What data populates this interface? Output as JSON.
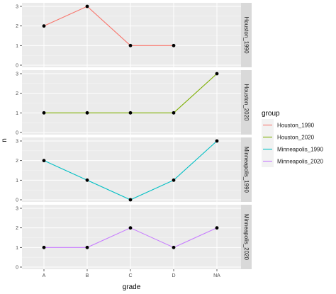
{
  "chart_data": {
    "type": "line",
    "facet": "rows",
    "xlabel": "grade",
    "ylabel": "n",
    "categories": [
      "A",
      "B",
      "C",
      "D",
      "NA"
    ],
    "ylim": [
      0,
      3
    ],
    "yticks": [
      0,
      1,
      2,
      3
    ],
    "grid": true,
    "legend": {
      "title": "group",
      "placement": "right"
    },
    "series": [
      {
        "name": "Houston_1990",
        "color": "#F8766D",
        "x": [
          "A",
          "B",
          "C",
          "D"
        ],
        "values": [
          2,
          3,
          1,
          1
        ]
      },
      {
        "name": "Houston_2020",
        "color": "#7CAE00",
        "x": [
          "A",
          "B",
          "C",
          "D",
          "NA"
        ],
        "values": [
          1,
          1,
          1,
          1,
          3
        ]
      },
      {
        "name": "Minneapolis_1990",
        "color": "#00BFC4",
        "x": [
          "A",
          "B",
          "C",
          "D",
          "NA"
        ],
        "values": [
          2,
          1,
          0,
          1,
          3
        ]
      },
      {
        "name": "Minneapolis_2020",
        "color": "#C77CFF",
        "x": [
          "A",
          "B",
          "C",
          "D",
          "NA"
        ],
        "values": [
          1,
          1,
          2,
          1,
          2
        ]
      }
    ]
  }
}
